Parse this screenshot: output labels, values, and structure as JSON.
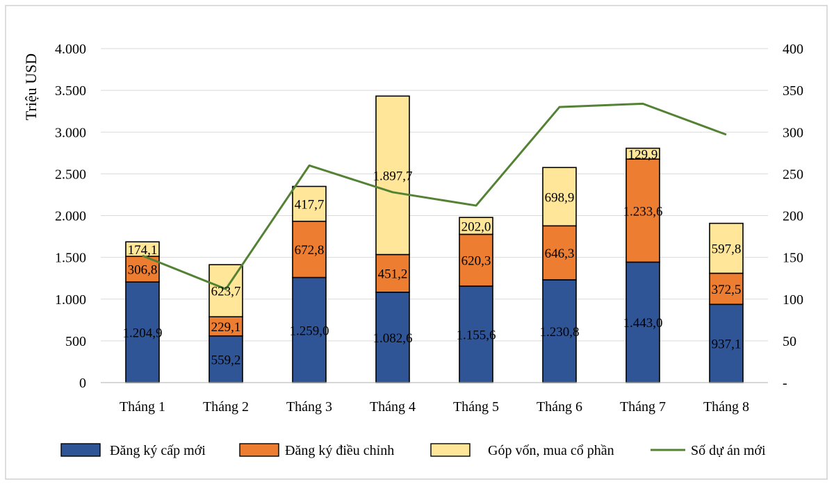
{
  "chart_data": {
    "type": "bar",
    "stacked": true,
    "categories": [
      "Tháng 1",
      "Tháng 2",
      "Tháng 3",
      "Tháng 4",
      "Tháng 5",
      "Tháng 6",
      "Tháng 7",
      "Tháng 8"
    ],
    "series": [
      {
        "name": "Đăng ký cấp mới",
        "color": "#2F5597",
        "values": [
          1204.9,
          559.2,
          1259.0,
          1082.6,
          1155.6,
          1230.8,
          1443.0,
          937.1
        ],
        "labels": [
          "1.204,9",
          "559,2",
          "1.259,0",
          "1.082,6",
          "1.155,6",
          "1.230,8",
          "1.443,0",
          "937,1"
        ]
      },
      {
        "name": "Đăng ký điều chỉnh",
        "color": "#ED7D31",
        "values": [
          306.8,
          229.1,
          672.8,
          451.2,
          620.3,
          646.3,
          1233.6,
          372.5
        ],
        "labels": [
          "306,8",
          "229,1",
          "672,8",
          "451,2",
          "620,3",
          "646,3",
          "1.233,6",
          "372,5"
        ]
      },
      {
        "name": "Góp vốn, mua cổ phần",
        "color": "#FFE699",
        "values": [
          174.1,
          623.7,
          417.7,
          1897.7,
          202.0,
          698.9,
          129.9,
          597.8
        ],
        "labels": [
          "174,1",
          "623,7",
          "417,7",
          "1.897,7",
          "202,0",
          "698,9",
          "129,9",
          "597,8"
        ]
      }
    ],
    "line_series": {
      "name": "Số dự án mới",
      "color": "#548235",
      "axis": "right",
      "values": [
        152,
        112,
        260,
        228,
        212,
        330,
        334,
        297
      ]
    },
    "ylabel": "Triệu USD",
    "ylim": [
      0,
      4000
    ],
    "y_ticks": [
      0,
      500,
      1000,
      1500,
      2000,
      2500,
      3000,
      3500,
      4000
    ],
    "y_tick_labels": [
      "0",
      "500",
      "1.000",
      "1.500",
      "2.000",
      "2.500",
      "3.000",
      "3.500",
      "4.000"
    ],
    "y2lim": [
      0,
      400
    ],
    "y2_ticks": [
      0,
      50,
      100,
      150,
      200,
      250,
      300,
      350,
      400
    ],
    "y2_tick_labels": [
      "-",
      "50",
      "100",
      "150",
      "200",
      "250",
      "300",
      "350",
      "400"
    ],
    "grid": true,
    "legend_position": "bottom"
  }
}
